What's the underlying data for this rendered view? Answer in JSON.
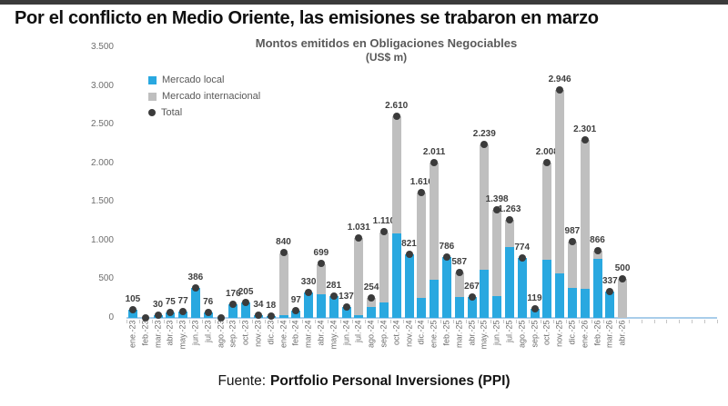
{
  "header": {
    "title": "Por el conflicto en Medio Oriente, las emisiones se trabaron en marzo"
  },
  "footer": {
    "prefix": "Fuente:",
    "source": "Portfolio Personal Inversiones (PPI)"
  },
  "chart_data": {
    "type": "bar",
    "stacked": true,
    "title": "Montos emitidos en Obligaciones Negociables",
    "subtitle": "(US$ m)",
    "ylabel": "",
    "xlabel": "",
    "ylim": [
      0,
      3500
    ],
    "grid": false,
    "legend_position": "top-left",
    "yticks": [
      {
        "value": 0,
        "label": "0"
      },
      {
        "value": 500,
        "label": "500"
      },
      {
        "value": 1000,
        "label": "1.000"
      },
      {
        "value": 1500,
        "label": "1.500"
      },
      {
        "value": 2000,
        "label": "2.000"
      },
      {
        "value": 2500,
        "label": "2.500"
      },
      {
        "value": 3000,
        "label": "3.000"
      },
      {
        "value": 3500,
        "label": "3.500"
      }
    ],
    "legend": [
      {
        "label": "Mercado local",
        "marker": "square",
        "color": "#29a8e0"
      },
      {
        "label": "Mercado internacional",
        "marker": "square",
        "color": "#bfbfbf"
      },
      {
        "label": "Total",
        "marker": "dot",
        "color": "#3b3b3b"
      }
    ],
    "categories": [
      "ene.-23",
      "feb.-23",
      "mar.-23",
      "abr.-23",
      "may.-23",
      "jun.-23",
      "jul.-23",
      "ago.-23",
      "sep.-23",
      "oct.-23",
      "nov.-23",
      "dic.-23",
      "ene.-24",
      "feb.-24",
      "mar.-24",
      "abr.-24",
      "may.-24",
      "jun.-24",
      "jul.-24",
      "ago.-24",
      "sep.-24",
      "oct.-24",
      "nov.-24",
      "dic.-24",
      "ene.-25",
      "feb.-25",
      "mar.-25",
      "abr.-25",
      "may.-25",
      "jun.-25",
      "jul.-25",
      "ago.-25",
      "sep.-25",
      "oct.-25",
      "nov.-25",
      "dic.-25",
      "ene.-26",
      "feb.-26",
      "mar.-26",
      "abr.-26"
    ],
    "series": [
      {
        "name": "Mercado local",
        "color": "#29a8e0",
        "values": [
          105,
          0,
          30,
          75,
          77,
          386,
          76,
          0,
          176,
          205,
          34,
          18,
          40,
          97,
          330,
          310,
          281,
          137,
          40,
          140,
          200,
          1090,
          821,
          260,
          490,
          786,
          275,
          267,
          625,
          280,
          915,
          774,
          119,
          750,
          570,
          390,
          375,
          765,
          337,
          0
        ]
      },
      {
        "name": "Mercado internacional",
        "color": "#bfbfbf",
        "values": [
          0,
          0,
          0,
          0,
          0,
          0,
          0,
          0,
          0,
          0,
          0,
          0,
          800,
          0,
          0,
          389,
          0,
          0,
          991,
          114,
          910,
          1520,
          0,
          1356,
          1521,
          0,
          312,
          0,
          1614,
          1118,
          348,
          0,
          0,
          1258,
          2376,
          597,
          1926,
          101,
          0,
          500
        ]
      }
    ],
    "totals": [
      105,
      0,
      30,
      75,
      77,
      386,
      76,
      0,
      176,
      205,
      34,
      18,
      840,
      97,
      330,
      699,
      281,
      137,
      1031,
      254,
      1110,
      2610,
      821,
      1616,
      2011,
      786,
      587,
      267,
      2239,
      1398,
      1263,
      774,
      119,
      2008,
      2946,
      987,
      2301,
      866,
      337,
      500
    ],
    "total_labels": [
      "105",
      "",
      "30",
      "75",
      "77",
      "386",
      "76",
      "",
      "176",
      "205",
      "34",
      "18",
      "840",
      "97",
      "330",
      "699",
      "281",
      "137",
      "1.031",
      "254",
      "1.110",
      "2.610",
      "821",
      "1.616",
      "2.011",
      "786",
      "587",
      "267",
      "2.239",
      "1.398",
      "1.263",
      "774",
      "119",
      "2.008",
      "2.946",
      "987",
      "2.301",
      "866",
      "337",
      "500"
    ],
    "colors": {
      "local": "#29a8e0",
      "international": "#bfbfbf",
      "total_dot": "#3b3b3b",
      "baseline": "#a9cdea",
      "value_label": "#3f3f3f",
      "axis_text": "#6e6e6e"
    }
  }
}
